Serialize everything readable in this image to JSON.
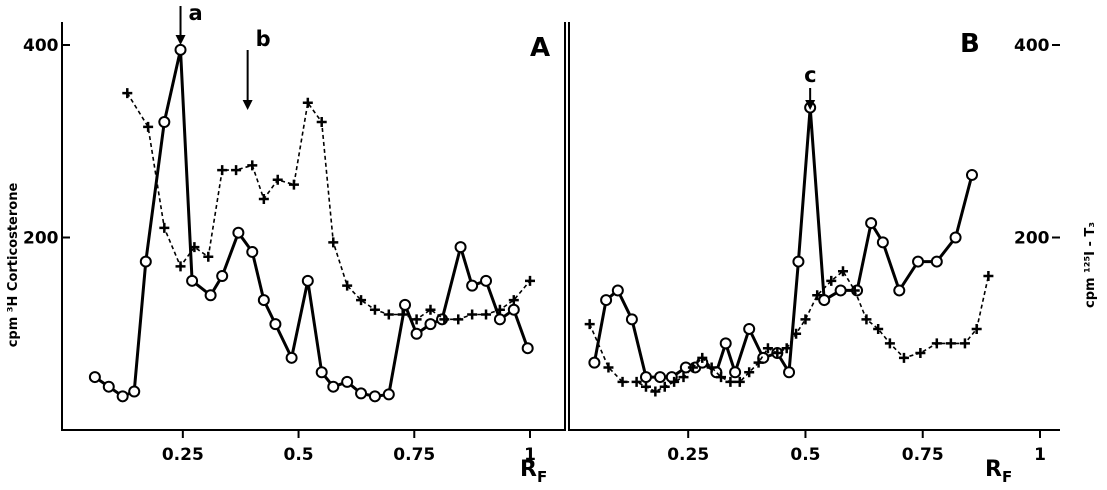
{
  "chart_data": [
    {
      "type": "line",
      "panel_label": "A",
      "x_axis": {
        "label": "R",
        "label_subscript": "F",
        "ticks": [
          "0.25",
          "0.5",
          "0.75",
          "1"
        ],
        "tick_values": [
          0.25,
          0.5,
          0.75,
          1.0
        ],
        "xlim": [
          0.03,
          1.0
        ]
      },
      "y_axis": {
        "label": "cpm ³H Corticosterone",
        "ticks": [
          "200",
          "400"
        ],
        "tick_values": [
          200,
          400
        ],
        "ylim": [
          0,
          400
        ]
      },
      "markers": [
        {
          "label": "a",
          "x": 0.245
        },
        {
          "label": "b",
          "x": 0.39
        }
      ],
      "series": [
        {
          "style": "solid",
          "marker": "circle",
          "x": [
            0.06,
            0.09,
            0.12,
            0.145,
            0.17,
            0.21,
            0.245,
            0.27,
            0.31,
            0.335,
            0.37,
            0.4,
            0.425,
            0.45,
            0.485,
            0.52,
            0.55,
            0.575,
            0.605,
            0.635,
            0.665,
            0.695,
            0.73,
            0.755,
            0.785,
            0.81,
            0.85,
            0.875,
            0.905,
            0.935,
            0.965,
            0.995
          ],
          "y": [
            55,
            45,
            35,
            40,
            175,
            320,
            395,
            155,
            140,
            160,
            205,
            185,
            135,
            110,
            75,
            155,
            60,
            45,
            50,
            38,
            35,
            37,
            130,
            100,
            110,
            115,
            190,
            150,
            155,
            115,
            125,
            85
          ]
        },
        {
          "style": "dashed",
          "marker": "cross",
          "x": [
            0.13,
            0.175,
            0.21,
            0.245,
            0.275,
            0.305,
            0.335,
            0.365,
            0.4,
            0.425,
            0.455,
            0.49,
            0.52,
            0.55,
            0.575,
            0.605,
            0.635,
            0.665,
            0.695,
            0.725,
            0.755,
            0.785,
            0.815,
            0.845,
            0.875,
            0.905,
            0.935,
            0.965,
            1.0
          ],
          "y": [
            350,
            315,
            210,
            170,
            190,
            180,
            270,
            270,
            275,
            240,
            260,
            255,
            340,
            320,
            195,
            150,
            135,
            125,
            120,
            120,
            115,
            125,
            115,
            115,
            120,
            120,
            125,
            135,
            155
          ]
        }
      ]
    },
    {
      "type": "line",
      "panel_label": "B",
      "x_axis": {
        "label": "R",
        "label_subscript": "F",
        "ticks": [
          "0.25",
          "0.5",
          "0.75",
          "1"
        ],
        "tick_values": [
          0.25,
          0.5,
          0.75,
          1.0
        ],
        "xlim": [
          0.03,
          1.0
        ]
      },
      "y_axis": {
        "label": "cpm ¹²⁵I - T₃",
        "ticks": [
          "200",
          "400"
        ],
        "tick_values": [
          200,
          400
        ],
        "ylim": [
          0,
          400
        ]
      },
      "markers": [
        {
          "label": "c",
          "x": 0.51
        }
      ],
      "series": [
        {
          "style": "solid",
          "marker": "circle",
          "x": [
            0.05,
            0.075,
            0.1,
            0.13,
            0.16,
            0.19,
            0.215,
            0.245,
            0.265,
            0.28,
            0.31,
            0.33,
            0.35,
            0.38,
            0.41,
            0.44,
            0.465,
            0.485,
            0.51,
            0.54,
            0.575,
            0.61,
            0.64,
            0.665,
            0.7,
            0.74,
            0.78,
            0.82,
            0.855
          ],
          "y": [
            70,
            135,
            145,
            115,
            55,
            55,
            55,
            65,
            65,
            70,
            60,
            90,
            60,
            105,
            75,
            80,
            60,
            175,
            335,
            135,
            145,
            145,
            215,
            195,
            145,
            175,
            175,
            200,
            265
          ]
        },
        {
          "style": "dashed",
          "marker": "cross",
          "x": [
            0.04,
            0.08,
            0.11,
            0.14,
            0.16,
            0.18,
            0.2,
            0.22,
            0.24,
            0.26,
            0.28,
            0.3,
            0.32,
            0.34,
            0.36,
            0.38,
            0.4,
            0.42,
            0.44,
            0.46,
            0.48,
            0.5,
            0.525,
            0.555,
            0.58,
            0.605,
            0.63,
            0.655,
            0.68,
            0.71,
            0.745,
            0.78,
            0.81,
            0.84,
            0.865,
            0.89
          ],
          "y": [
            110,
            65,
            50,
            50,
            45,
            40,
            45,
            50,
            55,
            65,
            75,
            65,
            55,
            50,
            50,
            60,
            70,
            85,
            80,
            85,
            100,
            115,
            140,
            155,
            165,
            145,
            115,
            105,
            90,
            75,
            80,
            90,
            90,
            90,
            105,
            160
          ]
        }
      ]
    }
  ]
}
